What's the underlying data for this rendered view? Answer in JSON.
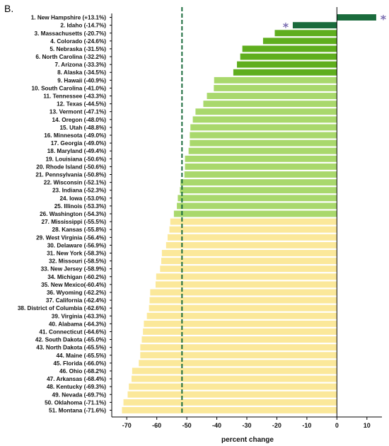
{
  "panel_label": "B.",
  "chart_data": {
    "type": "bar",
    "orientation": "horizontal",
    "categories": [
      "1. New Hampshire (+13.1%)",
      "2. Idaho (-14.7%)",
      "3. Massachusetts (-20.7%)",
      "4. Colorado (-24.6%)",
      "5. Nebraska (-31.5%)",
      "6. North Carolina (-32.2%)",
      "7. Arizona (-33.3%)",
      "8. Alaska (-34.5%)",
      "9. Hawaii (-40.9%)",
      "10. South Carolina (-41.0%)",
      "11. Tennessee (-43.3%)",
      "12. Texas (-44.5%)",
      "13. Vermont (-47.1%)",
      "14. Oregon (-48.0%)",
      "15. Utah (-48.8%)",
      "16. Minnesota (-49.0%)",
      "17. Georgia (-49.0%)",
      "18. Maryland (-49.4%)",
      "19. Louisiana (-50.6%)",
      "20. Rhode Island (-50.6%)",
      "21. Pennsylvania (-50.8%)",
      "22. Wisconsin (-52.1%)",
      "23. Indiana (-52.3%)",
      "24. Iowa (-53.0%)",
      "25. Illinois (-53.3%)",
      "26. Washington (-54.3%)",
      "27. Mississippi (-55.5%)",
      "28. Kansas (-55.8%)",
      "29. West Virginia (-56.4%)",
      "30. Delaware (-56.9%)",
      "31. New York (-58.3%)",
      "32. Missouri (-58.5%)",
      "33. New Jersey (-58.9%)",
      "34. Michigan (-60.2%)",
      "35. New Mexico(-60.4%)",
      "36. Wyoming (-62.2%)",
      "37. California (-62.4%)",
      "38. District of Columbia (-62.6%)",
      "39. Virginia (-63.3%)",
      "40. Alabama (-64.3%)",
      "41. Connecticut (-64.6%)",
      "42. South Dakota (-65.0%)",
      "43. North Dakota (-65.5%)",
      "44. Maine (-65.5%)",
      "45. Florida (-66.0%)",
      "46. Ohio (-68.2%)",
      "47. Arkansas (-68.4%)",
      "48. Kentucky (-69.3%)",
      "49. Nevada (-69.7%)",
      "50. Oklahoma (-71.1%)",
      "51. Montana (-71.6%)"
    ],
    "values": [
      13.1,
      -14.7,
      -20.7,
      -24.6,
      -31.5,
      -32.2,
      -33.3,
      -34.5,
      -40.9,
      -41.0,
      -43.3,
      -44.5,
      -47.1,
      -48.0,
      -48.8,
      -49.0,
      -49.0,
      -49.4,
      -50.6,
      -50.6,
      -50.8,
      -52.1,
      -52.3,
      -53.0,
      -53.3,
      -54.3,
      -55.5,
      -55.8,
      -56.4,
      -56.9,
      -58.3,
      -58.5,
      -58.9,
      -60.2,
      -60.4,
      -62.2,
      -62.4,
      -62.6,
      -63.3,
      -64.3,
      -64.6,
      -65.0,
      -65.5,
      -65.5,
      -66.0,
      -68.2,
      -68.4,
      -69.3,
      -69.7,
      -71.1,
      -71.6
    ],
    "xlabel": "percent change",
    "ylabel": "",
    "xlim": [
      -75,
      15
    ],
    "xticks": [
      -70,
      -60,
      -50,
      -40,
      -30,
      -20,
      -10,
      0,
      10
    ],
    "reference_line": {
      "value": -51.6,
      "color": "#1a6b3c",
      "style": "dashed"
    },
    "colors": {
      "dark_green": "#1a6b3c",
      "medium_green": "#5fae1e",
      "light_green": "#a9d86c",
      "yellow": "#fbe89a"
    },
    "color_groups": [
      {
        "from": 0,
        "to": 1,
        "color": "dark_green"
      },
      {
        "from": 2,
        "to": 7,
        "color": "medium_green"
      },
      {
        "from": 8,
        "to": 25,
        "color": "light_green"
      },
      {
        "from": 26,
        "to": 50,
        "color": "yellow"
      }
    ],
    "annotations": [
      {
        "text": "*",
        "category_index": 0,
        "side": "right",
        "color": "#7a6db0"
      },
      {
        "text": "*",
        "category_index": 1,
        "side": "left",
        "color": "#7a6db0"
      }
    ],
    "grid": false
  }
}
